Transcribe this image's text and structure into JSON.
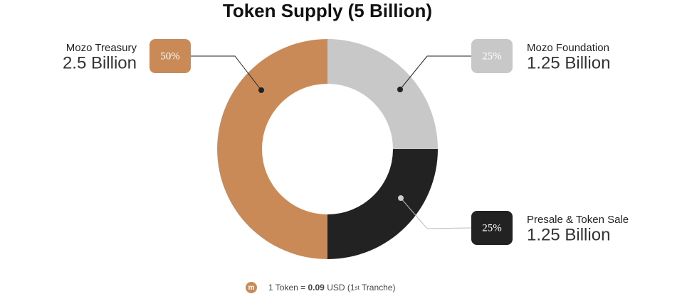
{
  "chart_data": {
    "type": "pie",
    "title": "Token Supply (5 Billion)",
    "categories": [
      "Mozo Foundation",
      "Presale & Token Sale",
      "Mozo Treasury"
    ],
    "values": [
      25,
      25,
      50
    ],
    "value_labels": [
      "25%",
      "25%",
      "50%"
    ],
    "amount_labels": [
      "1.25 Billion",
      "1.25 Billion",
      "2.5 Billion"
    ],
    "colors": [
      "#c8c8c8",
      "#222222",
      "#c98a58"
    ],
    "donut": true
  },
  "footnote": {
    "icon": "m",
    "prefix": "1 Token = ",
    "price": "0.09",
    "middle": " USD (1",
    "sup": "st",
    "suffix": " Tranche)"
  }
}
